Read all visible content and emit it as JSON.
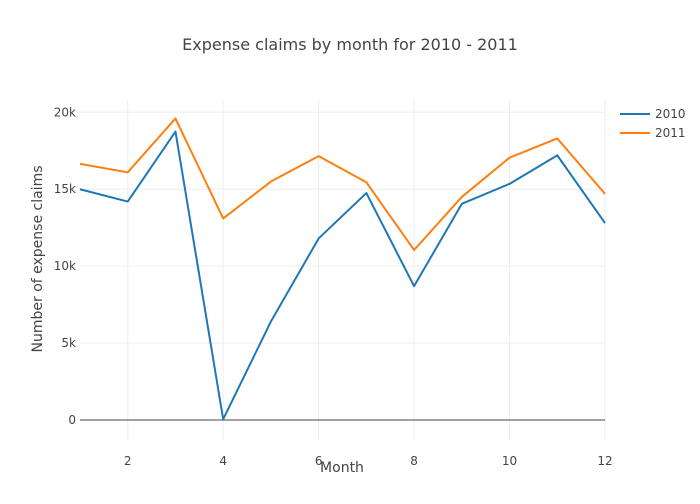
{
  "chart_data": {
    "type": "line",
    "title": "Expense claims by month for 2010 - 2011",
    "xlabel": "Month",
    "ylabel": "Number of expense claims",
    "x": [
      1,
      2,
      3,
      4,
      5,
      6,
      7,
      8,
      9,
      10,
      11,
      12
    ],
    "xlim": [
      1,
      12
    ],
    "ylim": [
      -1300,
      20800
    ],
    "x_ticks": [
      2,
      4,
      6,
      8,
      10,
      12
    ],
    "x_tick_labels": [
      "2",
      "4",
      "6",
      "8",
      "10",
      "12"
    ],
    "y_ticks": [
      0,
      5000,
      10000,
      15000,
      20000
    ],
    "y_tick_labels": [
      "0",
      "5k",
      "10k",
      "15k",
      "20k"
    ],
    "grid": true,
    "legend_position": "top-right",
    "series": [
      {
        "name": "2010",
        "color": "#1f77b4",
        "values": [
          15000,
          14200,
          18750,
          50,
          6400,
          11800,
          14750,
          8700,
          14050,
          15350,
          17200,
          12800
        ]
      },
      {
        "name": "2011",
        "color": "#ff7f0e",
        "values": [
          16650,
          16100,
          19600,
          13100,
          15500,
          17150,
          15450,
          11050,
          14500,
          17050,
          18300,
          14700
        ]
      }
    ]
  }
}
